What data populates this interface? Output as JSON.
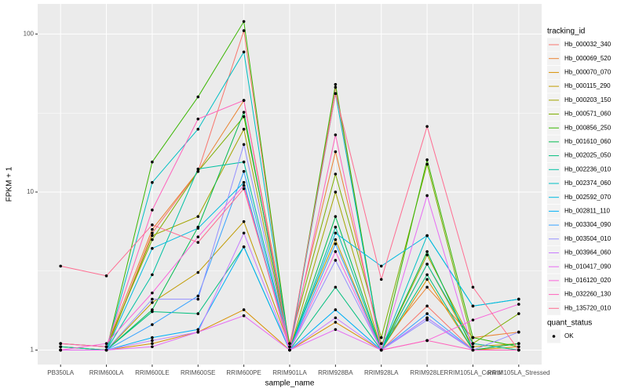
{
  "chart_data": {
    "type": "line",
    "x_label": "sample_name",
    "y_label": "FPKM + 1",
    "log_y": true,
    "grid": true,
    "ylim": [
      0.81,
      155
    ],
    "yticks": [
      1,
      10,
      100
    ],
    "legend_title": "tracking_id",
    "legend_position": "right",
    "point_color": "#000000",
    "point_legend": {
      "title": "quant_status",
      "labels": [
        "OK"
      ]
    },
    "categories": [
      "PB350LA",
      "RRIM600LA",
      "RRIM600LE",
      "RRIM600SE",
      "RRIM600PE",
      "RRIM901LA",
      "RRIM928BA",
      "RRIM928LA",
      "RRIM928LE",
      "RRIM105LA_Control",
      "RRIM105LA_Stressed"
    ],
    "series": [
      {
        "name": "Hb_000032_340",
        "color": "#F8766D",
        "values": [
          1.05,
          1.0,
          5.5,
          13.5,
          105,
          1.0,
          46,
          1.0,
          1.9,
          1.0,
          1.1
        ]
      },
      {
        "name": "Hb_000069_520",
        "color": "#EA8331",
        "values": [
          1.1,
          1.05,
          5.8,
          13.5,
          38,
          1.1,
          18,
          1.1,
          2.5,
          1.2,
          1.3
        ]
      },
      {
        "name": "Hb_000070_070",
        "color": "#D89000",
        "values": [
          1.0,
          1.0,
          1.1,
          1.3,
          1.8,
          1.0,
          1.5,
          1.0,
          2.8,
          1.0,
          1.05
        ]
      },
      {
        "name": "Hb_000115_290",
        "color": "#C09B00",
        "values": [
          1.05,
          1.0,
          2.0,
          3.1,
          6.5,
          1.05,
          5.0,
          1.0,
          3.5,
          1.05,
          1.1
        ]
      },
      {
        "name": "Hb_000203_150",
        "color": "#A3A500",
        "values": [
          1.0,
          1.0,
          5.3,
          7.0,
          25,
          1.0,
          10,
          1.0,
          4.0,
          1.1,
          1.0
        ]
      },
      {
        "name": "Hb_000571_060",
        "color": "#7CAE00",
        "values": [
          1.1,
          1.05,
          5.0,
          13.5,
          30,
          1.1,
          13,
          1.2,
          15,
          1.1,
          1.7
        ]
      },
      {
        "name": "Hb_000856_250",
        "color": "#39B600",
        "values": [
          1.05,
          1.0,
          15.5,
          40,
          120,
          1.0,
          48,
          1.0,
          16,
          1.2,
          1.05
        ]
      },
      {
        "name": "Hb_001610_060",
        "color": "#00BB4E",
        "values": [
          1.0,
          1.0,
          1.8,
          6,
          32,
          1.0,
          7,
          1.0,
          4.2,
          1.0,
          1.1
        ]
      },
      {
        "name": "Hb_002025_050",
        "color": "#00BF7D",
        "values": [
          1.0,
          1.0,
          1.75,
          1.7,
          4.5,
          1.0,
          2.5,
          1.0,
          3,
          1.0,
          1.0
        ]
      },
      {
        "name": "Hb_002236_010",
        "color": "#00C1A3",
        "values": [
          1.05,
          1.0,
          3,
          14,
          15.5,
          1.0,
          6,
          1.0,
          3.5,
          1.1,
          1.0
        ]
      },
      {
        "name": "Hb_002374_060",
        "color": "#00BFC4",
        "values": [
          1.0,
          1.0,
          11.5,
          25,
          77,
          1.0,
          42,
          1.0,
          5.3,
          1.9,
          2.1
        ]
      },
      {
        "name": "Hb_002592_070",
        "color": "#00BAE0",
        "values": [
          1.0,
          1.0,
          4.4,
          5.9,
          11.5,
          1.0,
          5.5,
          3.4,
          5.3,
          1.9,
          2.1
        ]
      },
      {
        "name": "Hb_002811_110",
        "color": "#00B0F6",
        "values": [
          1.0,
          1.0,
          1.2,
          1.35,
          4.5,
          1.0,
          1.8,
          1.0,
          1.6,
          1.0,
          1.0
        ]
      },
      {
        "name": "Hb_003304_090",
        "color": "#35A2FF",
        "values": [
          1.0,
          1.0,
          1.45,
          2.2,
          13.5,
          1.0,
          4.7,
          1.0,
          1.7,
          1.0,
          1.0
        ]
      },
      {
        "name": "Hb_003504_010",
        "color": "#9590FF",
        "values": [
          1.0,
          1.0,
          2.1,
          2.1,
          20,
          1.0,
          3.7,
          1.0,
          1.55,
          1.0,
          1.3
        ]
      },
      {
        "name": "Hb_003964_060",
        "color": "#C77CFF",
        "values": [
          1.0,
          1.0,
          1.15,
          1.3,
          5.5,
          1.0,
          1.6,
          1.0,
          1.6,
          1.0,
          1.0
        ]
      },
      {
        "name": "Hb_010417_090",
        "color": "#E76BF3",
        "values": [
          1.0,
          1.0,
          1.05,
          1.3,
          1.65,
          1.0,
          1.35,
          1.0,
          9.5,
          1.0,
          1.0
        ]
      },
      {
        "name": "Hb_016120_020",
        "color": "#FA62DB",
        "values": [
          1.0,
          1.1,
          2.3,
          5.2,
          11,
          1.0,
          4.2,
          1.0,
          1.15,
          1.55,
          1.95
        ]
      },
      {
        "name": "Hb_032260_130",
        "color": "#FF62BC",
        "values": [
          1.1,
          1.05,
          7.7,
          29,
          38,
          1.0,
          23,
          1.0,
          1.15,
          1.0,
          1.0
        ]
      },
      {
        "name": "Hb_135720_010",
        "color": "#FF6C91",
        "values": [
          3.4,
          2.95,
          6.2,
          4.8,
          10.5,
          1.05,
          42,
          2.8,
          26,
          2.5,
          1.0
        ]
      }
    ]
  }
}
